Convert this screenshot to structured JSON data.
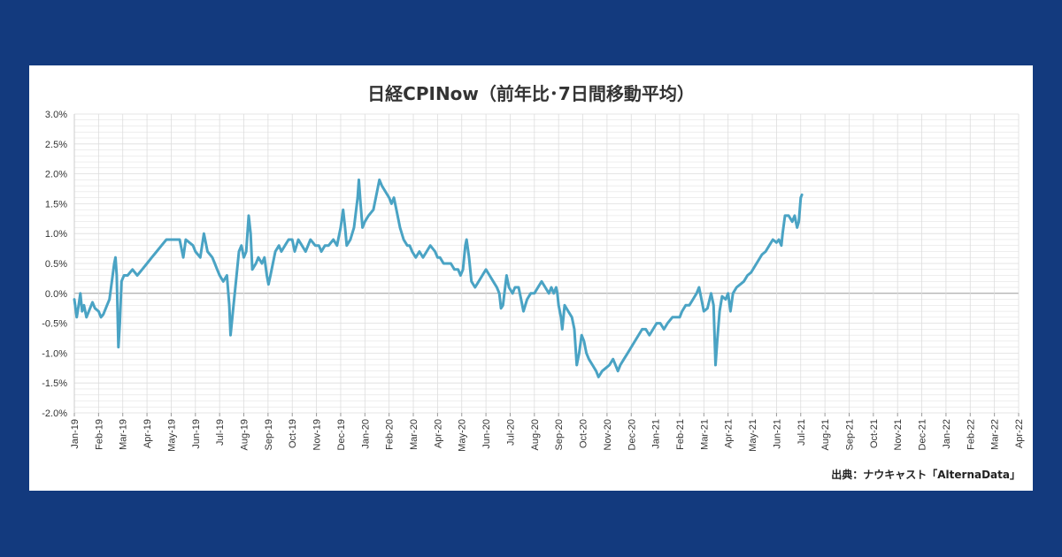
{
  "chart_data": {
    "type": "line",
    "title": "日経CPINow（前年比･7日間移動平均）",
    "source": "出典：ナウキャスト「AlternaData」",
    "xlabel": "",
    "ylabel": "",
    "ylim": [
      -2.0,
      3.0
    ],
    "y_ticks": [
      "3.0%",
      "2.5%",
      "2.0%",
      "1.5%",
      "1.0%",
      "0.5%",
      "0.0%",
      "-0.5%",
      "-1.0%",
      "-1.5%",
      "-2.0%"
    ],
    "x_ticks": [
      "Jan-19",
      "Feb-19",
      "Mar-19",
      "Apr-19",
      "May-19",
      "Jun-19",
      "Jul-19",
      "Aug-19",
      "Sep-19",
      "Oct-19",
      "Nov-19",
      "Dec-19",
      "Jan-20",
      "Feb-20",
      "Mar-20",
      "Apr-20",
      "May-20",
      "Jun-20",
      "Jul-20",
      "Aug-20",
      "Sep-20",
      "Oct-20",
      "Nov-20",
      "Dec-20",
      "Jan-21",
      "Feb-21",
      "Mar-21",
      "Apr-21",
      "May-21",
      "Jun-21",
      "Jul-21",
      "Aug-21",
      "Sep-21",
      "Oct-21",
      "Nov-21",
      "Dec-21",
      "Jan-22",
      "Feb-22",
      "Mar-22",
      "Apr-22"
    ],
    "grid": true,
    "colors": {
      "line": "#4aa3c4",
      "grid": "#dddddd",
      "zero": "#999999"
    },
    "series": [
      {
        "name": "",
        "points": [
          [
            0.0,
            -0.1
          ],
          [
            0.1,
            -0.4
          ],
          [
            0.18,
            -0.2
          ],
          [
            0.25,
            0.0
          ],
          [
            0.32,
            -0.3
          ],
          [
            0.4,
            -0.2
          ],
          [
            0.5,
            -0.4
          ],
          [
            0.6,
            -0.3
          ],
          [
            0.75,
            -0.15
          ],
          [
            0.85,
            -0.25
          ],
          [
            1.0,
            -0.3
          ],
          [
            1.1,
            -0.4
          ],
          [
            1.2,
            -0.35
          ],
          [
            1.35,
            -0.2
          ],
          [
            1.45,
            -0.1
          ],
          [
            1.55,
            0.2
          ],
          [
            1.65,
            0.5
          ],
          [
            1.7,
            0.6
          ],
          [
            1.75,
            0.3
          ],
          [
            1.82,
            -0.9
          ],
          [
            1.88,
            -0.5
          ],
          [
            1.95,
            0.2
          ],
          [
            2.05,
            0.3
          ],
          [
            2.2,
            0.3
          ],
          [
            2.4,
            0.4
          ],
          [
            2.6,
            0.3
          ],
          [
            2.8,
            0.4
          ],
          [
            3.0,
            0.5
          ],
          [
            3.2,
            0.6
          ],
          [
            3.4,
            0.7
          ],
          [
            3.6,
            0.8
          ],
          [
            3.8,
            0.9
          ],
          [
            4.0,
            0.9
          ],
          [
            4.2,
            0.9
          ],
          [
            4.35,
            0.9
          ],
          [
            4.5,
            0.6
          ],
          [
            4.6,
            0.9
          ],
          [
            4.75,
            0.85
          ],
          [
            4.9,
            0.8
          ],
          [
            5.0,
            0.7
          ],
          [
            5.2,
            0.6
          ],
          [
            5.35,
            1.0
          ],
          [
            5.5,
            0.7
          ],
          [
            5.7,
            0.6
          ],
          [
            5.8,
            0.5
          ],
          [
            5.9,
            0.4
          ],
          [
            6.0,
            0.3
          ],
          [
            6.15,
            0.2
          ],
          [
            6.3,
            0.3
          ],
          [
            6.4,
            -0.2
          ],
          [
            6.45,
            -0.7
          ],
          [
            6.55,
            -0.3
          ],
          [
            6.7,
            0.3
          ],
          [
            6.8,
            0.7
          ],
          [
            6.9,
            0.8
          ],
          [
            7.0,
            0.6
          ],
          [
            7.1,
            0.7
          ],
          [
            7.2,
            1.3
          ],
          [
            7.28,
            1.0
          ],
          [
            7.35,
            0.4
          ],
          [
            7.5,
            0.5
          ],
          [
            7.6,
            0.6
          ],
          [
            7.75,
            0.5
          ],
          [
            7.85,
            0.6
          ],
          [
            7.95,
            0.3
          ],
          [
            8.02,
            0.15
          ],
          [
            8.1,
            0.3
          ],
          [
            8.3,
            0.7
          ],
          [
            8.45,
            0.8
          ],
          [
            8.55,
            0.7
          ],
          [
            8.7,
            0.8
          ],
          [
            8.85,
            0.9
          ],
          [
            9.0,
            0.9
          ],
          [
            9.1,
            0.7
          ],
          [
            9.25,
            0.9
          ],
          [
            9.4,
            0.8
          ],
          [
            9.55,
            0.7
          ],
          [
            9.75,
            0.9
          ],
          [
            9.95,
            0.8
          ],
          [
            10.1,
            0.8
          ],
          [
            10.2,
            0.7
          ],
          [
            10.35,
            0.8
          ],
          [
            10.5,
            0.8
          ],
          [
            10.7,
            0.9
          ],
          [
            10.85,
            0.8
          ],
          [
            11.0,
            1.1
          ],
          [
            11.1,
            1.4
          ],
          [
            11.18,
            1.1
          ],
          [
            11.25,
            0.8
          ],
          [
            11.4,
            0.9
          ],
          [
            11.55,
            1.1
          ],
          [
            11.7,
            1.6
          ],
          [
            11.75,
            1.9
          ],
          [
            11.82,
            1.5
          ],
          [
            11.9,
            1.1
          ],
          [
            12.0,
            1.2
          ],
          [
            12.15,
            1.3
          ],
          [
            12.35,
            1.4
          ],
          [
            12.5,
            1.7
          ],
          [
            12.6,
            1.9
          ],
          [
            12.7,
            1.8
          ],
          [
            12.85,
            1.7
          ],
          [
            13.0,
            1.6
          ],
          [
            13.1,
            1.5
          ],
          [
            13.2,
            1.6
          ],
          [
            13.3,
            1.4
          ],
          [
            13.45,
            1.1
          ],
          [
            13.6,
            0.9
          ],
          [
            13.75,
            0.8
          ],
          [
            13.85,
            0.8
          ],
          [
            13.95,
            0.7
          ],
          [
            14.1,
            0.6
          ],
          [
            14.25,
            0.7
          ],
          [
            14.4,
            0.6
          ],
          [
            14.55,
            0.7
          ],
          [
            14.7,
            0.8
          ],
          [
            14.9,
            0.7
          ],
          [
            15.0,
            0.6
          ],
          [
            15.1,
            0.6
          ],
          [
            15.25,
            0.5
          ],
          [
            15.4,
            0.5
          ],
          [
            15.55,
            0.5
          ],
          [
            15.7,
            0.4
          ],
          [
            15.85,
            0.4
          ],
          [
            15.95,
            0.3
          ],
          [
            16.05,
            0.4
          ],
          [
            16.15,
            0.8
          ],
          [
            16.2,
            0.9
          ],
          [
            16.3,
            0.6
          ],
          [
            16.4,
            0.2
          ],
          [
            16.55,
            0.1
          ],
          [
            16.7,
            0.2
          ],
          [
            16.85,
            0.3
          ],
          [
            17.0,
            0.4
          ],
          [
            17.15,
            0.3
          ],
          [
            17.3,
            0.2
          ],
          [
            17.45,
            0.1
          ],
          [
            17.55,
            0.0
          ],
          [
            17.62,
            -0.25
          ],
          [
            17.7,
            -0.2
          ],
          [
            17.85,
            0.3
          ],
          [
            17.95,
            0.1
          ],
          [
            18.1,
            0.0
          ],
          [
            18.2,
            0.1
          ],
          [
            18.35,
            0.1
          ],
          [
            18.45,
            -0.1
          ],
          [
            18.55,
            -0.3
          ],
          [
            18.7,
            -0.1
          ],
          [
            18.85,
            0.0
          ],
          [
            19.0,
            0.0
          ],
          [
            19.15,
            0.1
          ],
          [
            19.3,
            0.2
          ],
          [
            19.45,
            0.1
          ],
          [
            19.6,
            0.0
          ],
          [
            19.7,
            0.1
          ],
          [
            19.8,
            0.0
          ],
          [
            19.9,
            0.1
          ],
          [
            19.95,
            0.0
          ],
          [
            20.0,
            -0.2
          ],
          [
            20.1,
            -0.4
          ],
          [
            20.15,
            -0.6
          ],
          [
            20.25,
            -0.2
          ],
          [
            20.4,
            -0.3
          ],
          [
            20.55,
            -0.4
          ],
          [
            20.65,
            -0.6
          ],
          [
            20.75,
            -1.2
          ],
          [
            20.85,
            -1.0
          ],
          [
            20.95,
            -0.7
          ],
          [
            21.05,
            -0.8
          ],
          [
            21.15,
            -1.0
          ],
          [
            21.25,
            -1.1
          ],
          [
            21.4,
            -1.2
          ],
          [
            21.55,
            -1.3
          ],
          [
            21.65,
            -1.4
          ],
          [
            21.8,
            -1.3
          ],
          [
            21.95,
            -1.25
          ],
          [
            22.1,
            -1.2
          ],
          [
            22.25,
            -1.1
          ],
          [
            22.35,
            -1.2
          ],
          [
            22.45,
            -1.3
          ],
          [
            22.55,
            -1.2
          ],
          [
            22.7,
            -1.1
          ],
          [
            22.85,
            -1.0
          ],
          [
            23.0,
            -0.9
          ],
          [
            23.15,
            -0.8
          ],
          [
            23.3,
            -0.7
          ],
          [
            23.45,
            -0.6
          ],
          [
            23.6,
            -0.6
          ],
          [
            23.75,
            -0.7
          ],
          [
            23.9,
            -0.6
          ],
          [
            24.05,
            -0.5
          ],
          [
            24.2,
            -0.5
          ],
          [
            24.35,
            -0.6
          ],
          [
            24.5,
            -0.5
          ],
          [
            24.7,
            -0.4
          ],
          [
            24.85,
            -0.4
          ],
          [
            25.0,
            -0.4
          ],
          [
            25.1,
            -0.3
          ],
          [
            25.25,
            -0.2
          ],
          [
            25.4,
            -0.2
          ],
          [
            25.55,
            -0.1
          ],
          [
            25.7,
            0.0
          ],
          [
            25.8,
            0.1
          ],
          [
            25.9,
            -0.1
          ],
          [
            26.0,
            -0.3
          ],
          [
            26.15,
            -0.25
          ],
          [
            26.3,
            0.0
          ],
          [
            26.4,
            -0.2
          ],
          [
            26.48,
            -1.2
          ],
          [
            26.55,
            -0.8
          ],
          [
            26.65,
            -0.3
          ],
          [
            26.75,
            -0.05
          ],
          [
            26.9,
            -0.1
          ],
          [
            27.0,
            0.0
          ],
          [
            27.1,
            -0.3
          ],
          [
            27.2,
            0.0
          ],
          [
            27.35,
            0.1
          ],
          [
            27.5,
            0.15
          ],
          [
            27.65,
            0.2
          ],
          [
            27.8,
            0.3
          ],
          [
            27.95,
            0.35
          ],
          [
            28.1,
            0.45
          ],
          [
            28.25,
            0.55
          ],
          [
            28.4,
            0.65
          ],
          [
            28.55,
            0.7
          ],
          [
            28.7,
            0.8
          ],
          [
            28.85,
            0.9
          ],
          [
            29.0,
            0.85
          ],
          [
            29.1,
            0.9
          ],
          [
            29.2,
            0.8
          ],
          [
            29.25,
            1.0
          ],
          [
            29.35,
            1.3
          ],
          [
            29.5,
            1.3
          ],
          [
            29.65,
            1.2
          ],
          [
            29.75,
            1.3
          ],
          [
            29.85,
            1.1
          ],
          [
            29.92,
            1.2
          ],
          [
            30.0,
            1.6
          ],
          [
            30.05,
            1.65
          ]
        ]
      }
    ]
  }
}
